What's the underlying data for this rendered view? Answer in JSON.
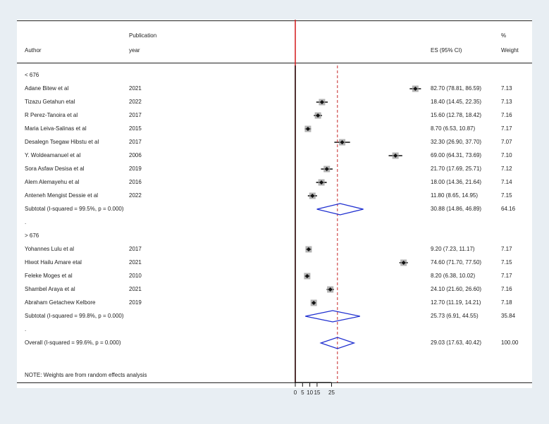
{
  "chart_data": {
    "type": "forest",
    "headers": {
      "col1": "Author",
      "col2_line1": "Publication",
      "col2_line2": "year",
      "col3": "ES (95% CI)",
      "col4_line1": "%",
      "col4_line2": "Weight"
    },
    "groups": [
      {
        "label": "< 676",
        "studies": [
          {
            "author": "Adane Bitew et al",
            "year": "2021",
            "es": 82.7,
            "lo": 78.81,
            "hi": 86.59,
            "ci_text": "82.70 (78.81, 86.59)",
            "weight": "7.13"
          },
          {
            "author": "Tizazu Getahun etal",
            "year": "2022",
            "es": 18.4,
            "lo": 14.45,
            "hi": 22.35,
            "ci_text": "18.40 (14.45, 22.35)",
            "weight": "7.13"
          },
          {
            "author": "R Perez-Tanoira  et al",
            "year": "2017",
            "es": 15.6,
            "lo": 12.78,
            "hi": 18.42,
            "ci_text": "15.60 (12.78, 18.42)",
            "weight": "7.16"
          },
          {
            "author": "Maria Leiva-Salinas et al",
            "year": "2015",
            "es": 8.7,
            "lo": 6.53,
            "hi": 10.87,
            "ci_text": "8.70 (6.53, 10.87)",
            "weight": "7.17"
          },
          {
            "author": "Desalegn Tsegaw Hibstu et al",
            "year": "2017",
            "es": 32.3,
            "lo": 26.9,
            "hi": 37.7,
            "ci_text": "32.30 (26.90, 37.70)",
            "weight": "7.07"
          },
          {
            "author": "Y. Woldeamanuel et al",
            "year": "2006",
            "es": 69.0,
            "lo": 64.31,
            "hi": 73.69,
            "ci_text": "69.00 (64.31, 73.69)",
            "weight": "7.10"
          },
          {
            "author": "Sora Asfaw Desisa et al",
            "year": "2019",
            "es": 21.7,
            "lo": 17.69,
            "hi": 25.71,
            "ci_text": "21.70 (17.69, 25.71)",
            "weight": "7.12"
          },
          {
            "author": "Alem Alemayehu et al",
            "year": "2016",
            "es": 18.0,
            "lo": 14.36,
            "hi": 21.64,
            "ci_text": "18.00 (14.36, 21.64)",
            "weight": "7.14"
          },
          {
            "author": "Anteneh Mengist Dessie et al",
            "year": "2022",
            "es": 11.8,
            "lo": 8.65,
            "hi": 14.95,
            "ci_text": "11.80 (8.65, 14.95)",
            "weight": "7.15"
          }
        ],
        "subtotal": {
          "label": "Subtotal  (I-squared = 99.5%, p = 0.000)",
          "es": 30.88,
          "lo": 14.86,
          "hi": 46.89,
          "ci_text": "30.88 (14.86, 46.89)",
          "weight": "64.16"
        }
      },
      {
        "label": "> 676",
        "studies": [
          {
            "author": "Yohannes Lulu et al",
            "year": "2017",
            "es": 9.2,
            "lo": 7.23,
            "hi": 11.17,
            "ci_text": "9.20 (7.23, 11.17)",
            "weight": "7.17"
          },
          {
            "author": "Hiwot Hailu Amare etal",
            "year": "2021",
            "es": 74.6,
            "lo": 71.7,
            "hi": 77.5,
            "ci_text": "74.60 (71.70, 77.50)",
            "weight": "7.15"
          },
          {
            "author": "Feleke Moges et al",
            "year": "2010",
            "es": 8.2,
            "lo": 6.38,
            "hi": 10.02,
            "ci_text": "8.20 (6.38, 10.02)",
            "weight": "7.17"
          },
          {
            "author": "Shambel Araya et al",
            "year": "2021",
            "es": 24.1,
            "lo": 21.6,
            "hi": 26.6,
            "ci_text": "24.10 (21.60, 26.60)",
            "weight": "7.16"
          },
          {
            "author": "Abraham Getachew Kelbore",
            "year": "2019",
            "es": 12.7,
            "lo": 11.19,
            "hi": 14.21,
            "ci_text": "12.70 (11.19, 14.21)",
            "weight": "7.18"
          }
        ],
        "subtotal": {
          "label": "Subtotal  (I-squared = 99.8%, p = 0.000)",
          "es": 25.73,
          "lo": 6.91,
          "hi": 44.55,
          "ci_text": "25.73 (6.91, 44.55)",
          "weight": "35.84"
        }
      }
    ],
    "separator": ".",
    "overall": {
      "label": "Overall  (I-squared = 99.6%, p = 0.000)",
      "es": 29.03,
      "lo": 17.63,
      "hi": 40.42,
      "ci_text": "29.03 (17.63, 40.42)",
      "weight": "100.00"
    },
    "note": "NOTE: Weights are from random effects analysis",
    "x_ticks": [
      0,
      5,
      10,
      15,
      25
    ],
    "x_tick_labels": [
      "0",
      "5",
      "10",
      "15",
      "25"
    ],
    "null_line": 0,
    "colors": {
      "null_line": "#d62728",
      "reference_line": "#c62828",
      "diamond": "#1f2fd0",
      "marker": "#111111",
      "box": "#9a9a9a",
      "ci": "#111111"
    }
  }
}
